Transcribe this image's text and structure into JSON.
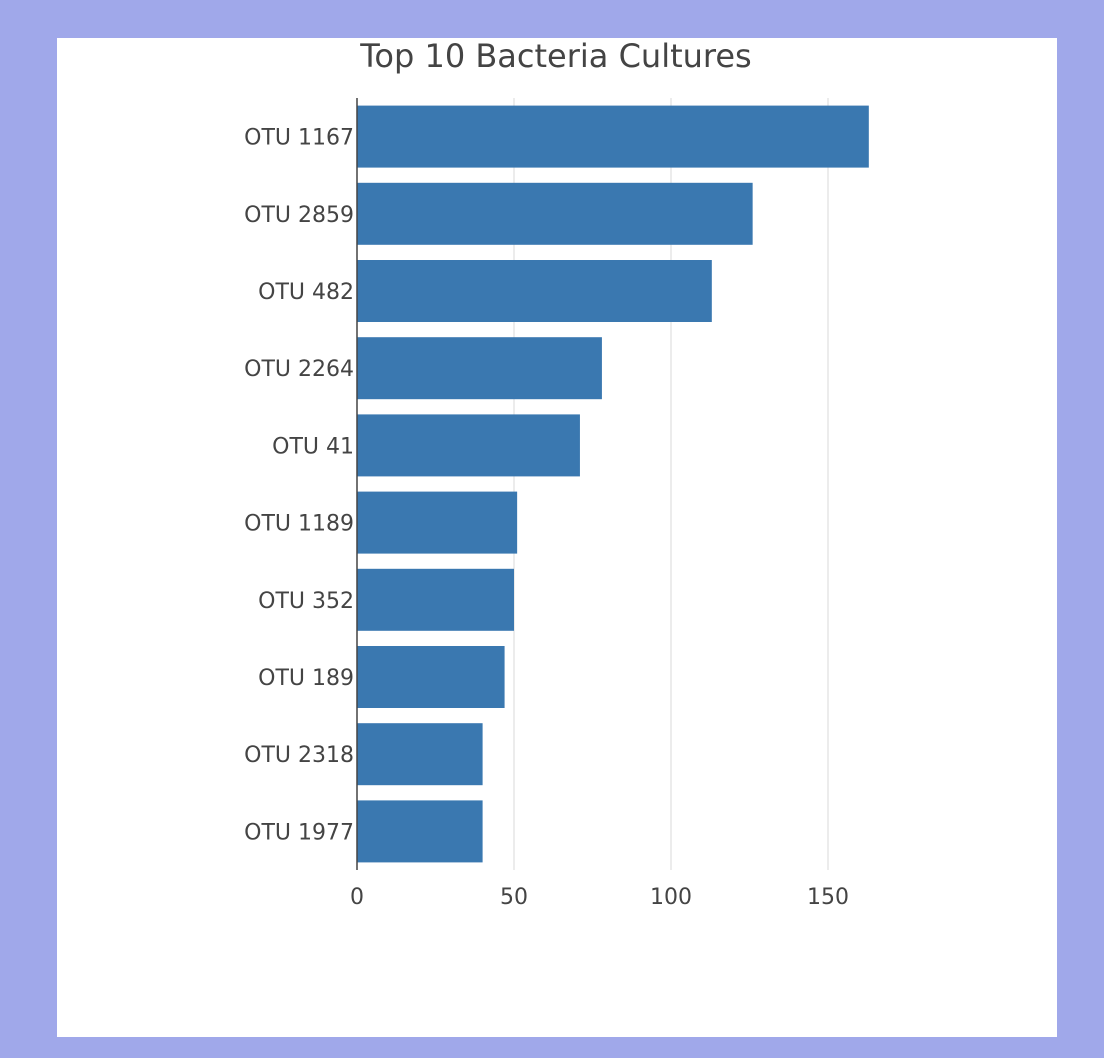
{
  "chart_data": {
    "type": "bar",
    "orientation": "horizontal",
    "title": "Top 10 Bacteria Cultures",
    "xlabel": "",
    "ylabel": "",
    "categories": [
      "OTU 1167",
      "OTU 2859",
      "OTU 482",
      "OTU 2264",
      "OTU 41",
      "OTU 1189",
      "OTU 352",
      "OTU 189",
      "OTU 2318",
      "OTU 1977"
    ],
    "values": [
      163,
      126,
      113,
      78,
      71,
      51,
      50,
      47,
      40,
      40
    ],
    "xlim": [
      0,
      200
    ],
    "xticks": [
      0,
      50,
      100,
      150
    ],
    "grid": true,
    "bar_color": "#3a78b0"
  },
  "colors": {
    "page_background": "#a0a8ea",
    "panel_background": "#ffffff",
    "text": "#444444"
  }
}
